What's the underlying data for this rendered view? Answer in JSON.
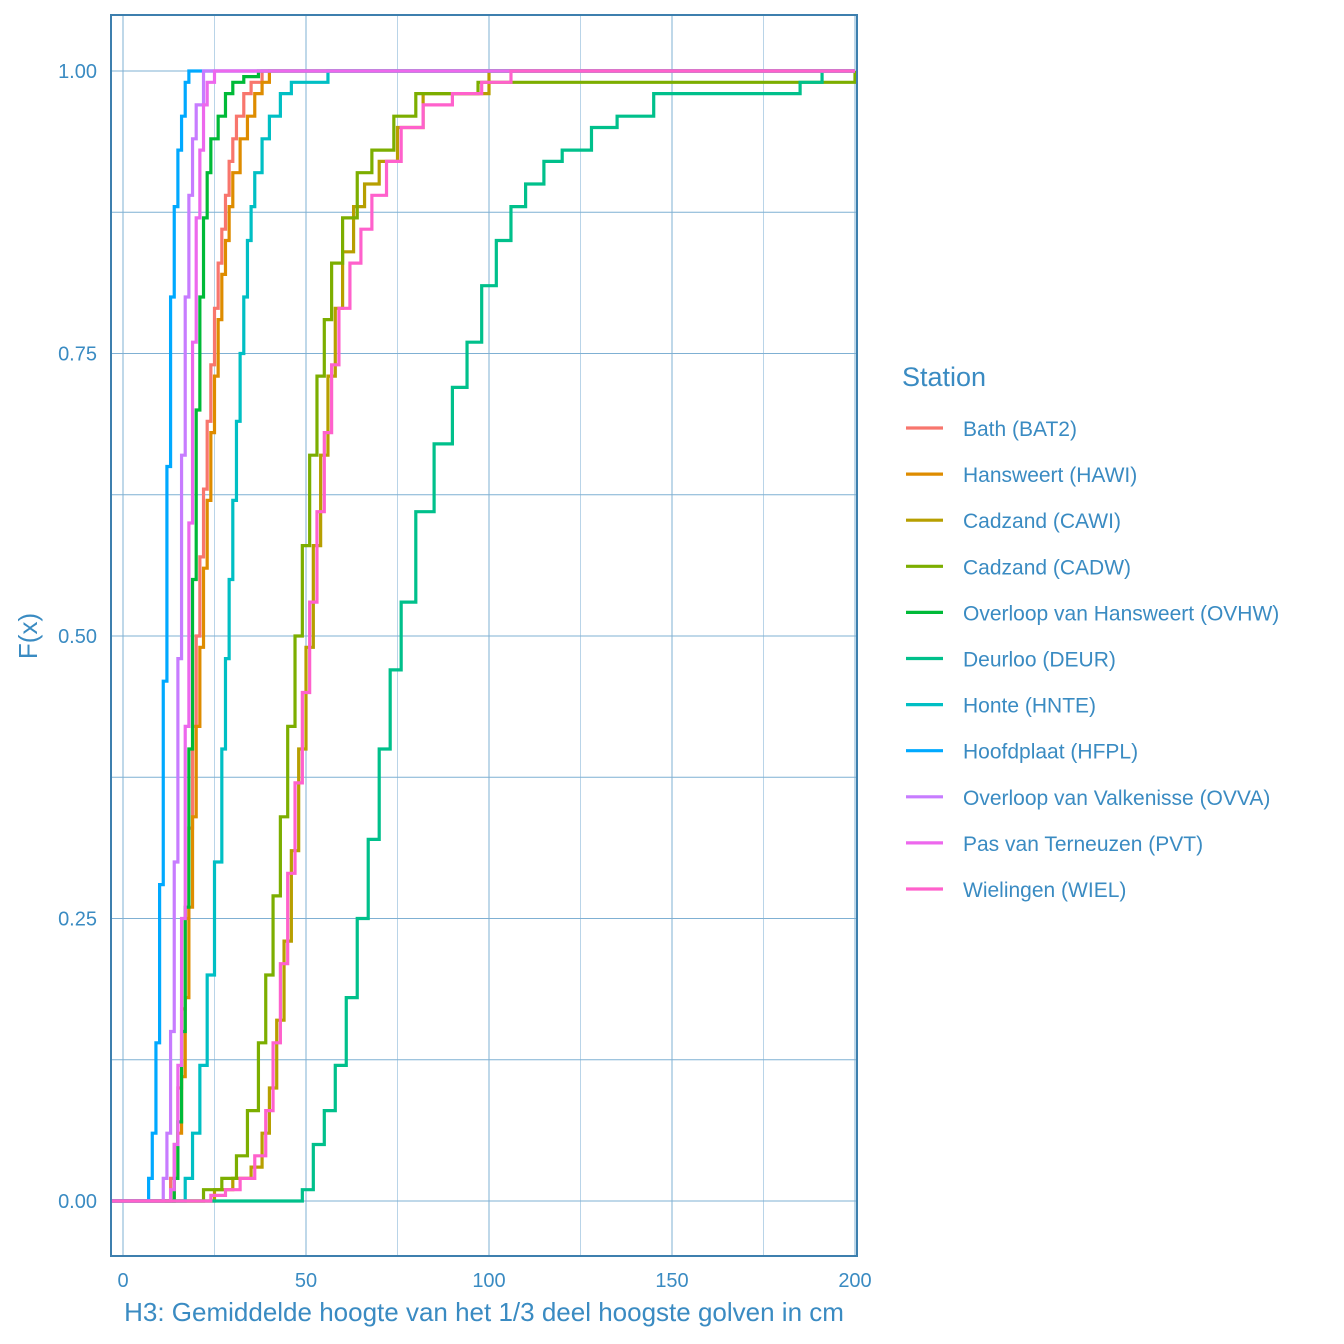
{
  "chart_data": {
    "type": "line",
    "subtype": "empirical-cdf-step",
    "title": "",
    "xlabel": "H3: Gemiddelde hoogte van het 1/3 deel hoogste golven in cm",
    "ylabel": "F(x)",
    "xlim": [
      -3,
      200
    ],
    "ylim": [
      -0.05,
      1.05
    ],
    "x_ticks": [
      0,
      50,
      100,
      150,
      200
    ],
    "x_tick_labels": [
      "0",
      "50",
      "100",
      "150",
      "200"
    ],
    "y_ticks": [
      0,
      0.25,
      0.5,
      0.75,
      1.0
    ],
    "y_tick_labels": [
      "0.00",
      "0.25",
      "0.50",
      "0.75",
      "1.00"
    ],
    "grid": true,
    "legend_position": "right",
    "legend_title": "Station",
    "series": [
      {
        "name": "Bath (BAT2)",
        "color": "#F8766D",
        "x": [
          -3,
          12,
          13,
          14,
          15,
          16,
          17,
          18,
          19,
          20,
          21,
          22,
          23,
          24,
          25,
          26,
          27,
          28,
          29,
          30,
          31,
          33,
          35,
          38,
          200
        ],
        "y": [
          0,
          0,
          0.02,
          0.05,
          0.1,
          0.17,
          0.25,
          0.33,
          0.42,
          0.5,
          0.57,
          0.63,
          0.69,
          0.74,
          0.79,
          0.83,
          0.86,
          0.89,
          0.92,
          0.94,
          0.96,
          0.98,
          0.99,
          1.0,
          1.0
        ]
      },
      {
        "name": "Hanswieert (HAWI)",
        "display": "Hansweert (HAWI)",
        "color": "#DE8C00",
        "x": [
          -3,
          12,
          14,
          15,
          16,
          17,
          18,
          19,
          20,
          21,
          22,
          23,
          24,
          25,
          26,
          27,
          28,
          29,
          30,
          32,
          34,
          36,
          38,
          40,
          200
        ],
        "y": [
          0,
          0,
          0.02,
          0.06,
          0.11,
          0.18,
          0.26,
          0.34,
          0.42,
          0.49,
          0.56,
          0.62,
          0.68,
          0.73,
          0.78,
          0.82,
          0.85,
          0.88,
          0.91,
          0.94,
          0.96,
          0.98,
          0.99,
          1.0,
          1.0
        ]
      },
      {
        "name": "Cadzand (CAWI)",
        "color": "#B79F00",
        "x": [
          -3,
          20,
          25,
          30,
          35,
          38,
          40,
          42,
          44,
          46,
          48,
          50,
          52,
          54,
          56,
          58,
          60,
          63,
          66,
          70,
          75,
          82,
          100,
          200
        ],
        "y": [
          0,
          0,
          0.01,
          0.02,
          0.03,
          0.06,
          0.1,
          0.16,
          0.23,
          0.31,
          0.4,
          0.49,
          0.58,
          0.66,
          0.73,
          0.79,
          0.84,
          0.88,
          0.9,
          0.92,
          0.95,
          0.98,
          1.0,
          1.0
        ]
      },
      {
        "name": "Cadzand (CADW)",
        "color": "#7CAE00",
        "x": [
          -3,
          19,
          22,
          27,
          31,
          34,
          37,
          39,
          41,
          43,
          45,
          47,
          49,
          51,
          53,
          55,
          57,
          60,
          64,
          68,
          74,
          80,
          97,
          135,
          200
        ],
        "y": [
          0,
          0,
          0.01,
          0.02,
          0.04,
          0.08,
          0.14,
          0.2,
          0.27,
          0.34,
          0.42,
          0.5,
          0.58,
          0.66,
          0.73,
          0.78,
          0.83,
          0.87,
          0.91,
          0.93,
          0.96,
          0.98,
          0.99,
          0.99,
          1.0
        ]
      },
      {
        "name": "Overloop van Hansweert (OVHW)",
        "color": "#00BA38",
        "x": [
          -3,
          13,
          14,
          15,
          16,
          17,
          18,
          19,
          20,
          21,
          22,
          23,
          24,
          26,
          28,
          30,
          33,
          37,
          200
        ],
        "y": [
          0,
          0,
          0.02,
          0.07,
          0.15,
          0.26,
          0.4,
          0.55,
          0.7,
          0.8,
          0.87,
          0.91,
          0.94,
          0.96,
          0.98,
          0.99,
          0.995,
          1.0,
          1.0
        ]
      },
      {
        "name": "Deurloo (DEUR)",
        "color": "#00C08B",
        "x": [
          -3,
          47,
          49,
          52,
          55,
          58,
          61,
          64,
          67,
          70,
          73,
          76,
          80,
          85,
          90,
          94,
          98,
          102,
          106,
          110,
          115,
          120,
          128,
          135,
          145,
          185,
          191,
          200
        ],
        "y": [
          0,
          0,
          0.01,
          0.05,
          0.08,
          0.12,
          0.18,
          0.25,
          0.32,
          0.4,
          0.47,
          0.53,
          0.61,
          0.67,
          0.72,
          0.76,
          0.81,
          0.85,
          0.88,
          0.9,
          0.92,
          0.93,
          0.95,
          0.96,
          0.98,
          0.99,
          1.0,
          1.0
        ]
      },
      {
        "name": "Honte (HNTE)",
        "color": "#00BFC4",
        "x": [
          -3,
          15,
          17,
          19,
          21,
          23,
          25,
          27,
          28,
          29,
          30,
          31,
          32,
          33,
          34,
          35,
          36,
          38,
          40,
          43,
          46,
          56,
          200
        ],
        "y": [
          0,
          0,
          0.02,
          0.06,
          0.12,
          0.2,
          0.3,
          0.4,
          0.48,
          0.55,
          0.62,
          0.69,
          0.75,
          0.8,
          0.85,
          0.88,
          0.91,
          0.94,
          0.96,
          0.98,
          0.99,
          1.0,
          1.0
        ]
      },
      {
        "name": "Hoofdplaat (HFPL)",
        "color": "#00A9FF",
        "x": [
          -3,
          5,
          7,
          8,
          9,
          10,
          11,
          12,
          13,
          14,
          15,
          16,
          17,
          18,
          200
        ],
        "y": [
          0,
          0,
          0.02,
          0.06,
          0.14,
          0.28,
          0.46,
          0.65,
          0.8,
          0.88,
          0.93,
          0.96,
          0.99,
          1.0,
          1.0
        ]
      },
      {
        "name": "Overloop van Valkenisse (OVVA)",
        "color": "#C77CFF",
        "x": [
          -3,
          10,
          11,
          12,
          13,
          14,
          15,
          16,
          17,
          18,
          19,
          20,
          22,
          200
        ],
        "y": [
          0,
          0,
          0.02,
          0.06,
          0.15,
          0.3,
          0.48,
          0.66,
          0.8,
          0.89,
          0.94,
          0.97,
          1.0,
          1.0
        ]
      },
      {
        "name": "Pas van Terneuzen (PVT)",
        "color": "#ED68ED",
        "x": [
          -3,
          12,
          13,
          14,
          15,
          16,
          17,
          18,
          19,
          20,
          21,
          22,
          23,
          25,
          200
        ],
        "y": [
          0,
          0,
          0.01,
          0.05,
          0.12,
          0.25,
          0.42,
          0.6,
          0.76,
          0.87,
          0.93,
          0.97,
          0.99,
          1.0,
          1.0
        ]
      },
      {
        "name": "Wielingen (WIEL)",
        "color": "#FF61CC",
        "x": [
          -3,
          20,
          24,
          28,
          32,
          36,
          39,
          41,
          43,
          45,
          47,
          49,
          51,
          53,
          55,
          57,
          59,
          62,
          65,
          68,
          72,
          76,
          82,
          90,
          98,
          106,
          200
        ],
        "y": [
          0,
          0,
          0.005,
          0.01,
          0.02,
          0.04,
          0.08,
          0.14,
          0.21,
          0.29,
          0.37,
          0.45,
          0.53,
          0.61,
          0.68,
          0.74,
          0.79,
          0.83,
          0.86,
          0.89,
          0.92,
          0.95,
          0.97,
          0.98,
          0.99,
          1.0,
          1.0
        ]
      }
    ]
  },
  "legend": {
    "title": "Station",
    "items": [
      {
        "label": "Bath (BAT2)",
        "color": "#F8766D"
      },
      {
        "label": "Hansweert (HAWI)",
        "color": "#DE8C00"
      },
      {
        "label": "Cadzand (CAWI)",
        "color": "#B79F00"
      },
      {
        "label": "Cadzand (CADW)",
        "color": "#7CAE00"
      },
      {
        "label": "Overloop van Hansweert (OVHW)",
        "color": "#00BA38"
      },
      {
        "label": "Deurloo (DEUR)",
        "color": "#00C08B"
      },
      {
        "label": "Honte (HNTE)",
        "color": "#00BFC4"
      },
      {
        "label": "Hoofdplaat (HFPL)",
        "color": "#00A9FF"
      },
      {
        "label": "Overloop van Valkenisse (OVVA)",
        "color": "#C77CFF"
      },
      {
        "label": "Pas van Terneuzen (PVT)",
        "color": "#ED68ED"
      },
      {
        "label": "Wielingen (WIEL)",
        "color": "#FF61CC"
      }
    ]
  },
  "axes": {
    "x_title": "H3: Gemiddelde hoogte van het 1/3 deel hoogste golven in cm",
    "y_title": "F(x)"
  },
  "theme": {
    "text_color": "#3a8bc2",
    "axis_color": "#3d7fae",
    "grid_major_color": "#7fb0d3",
    "grid_minor_color": "#b9d4e8"
  }
}
